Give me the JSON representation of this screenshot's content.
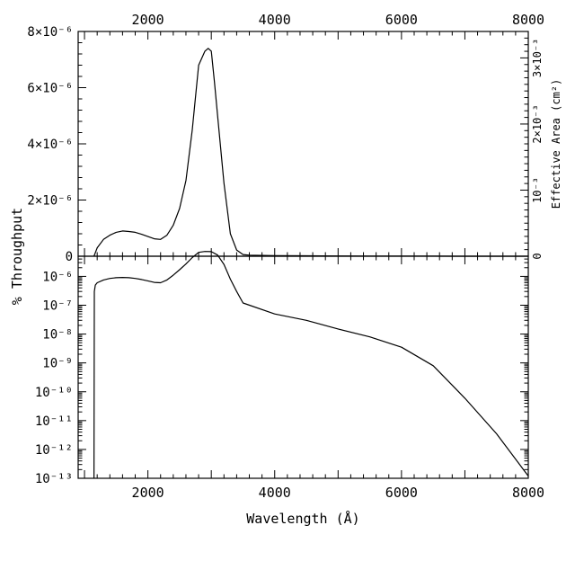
{
  "chart_data": [
    {
      "panel": "top",
      "type": "line",
      "xlabel": "Wavelength (Å)",
      "ylabel": "% Throughput",
      "y2label": "Effective Area (cm²)",
      "xlim": [
        900,
        8000
      ],
      "ylim": [
        0,
        8e-06
      ],
      "x_ticks": [
        2000,
        4000,
        6000,
        8000
      ],
      "y_ticks": [
        {
          "value": 0,
          "label": "0"
        },
        {
          "value": 2e-06,
          "label": "2×10⁻⁶"
        },
        {
          "value": 4e-06,
          "label": "4×10⁻⁶"
        },
        {
          "value": 6e-06,
          "label": "6×10⁻⁶"
        },
        {
          "value": 8e-06,
          "label": "8×10⁻⁶"
        }
      ],
      "y2_ticks": [
        {
          "value": 0,
          "label": "0"
        },
        {
          "value": 0.001,
          "label": "10⁻³"
        },
        {
          "value": 0.002,
          "label": "2×10⁻³"
        },
        {
          "value": 0.003,
          "label": "3×10⁻³"
        }
      ],
      "y2lim": [
        0,
        0.0034
      ],
      "series": [
        {
          "x": [
            1150,
            1200,
            1300,
            1400,
            1500,
            1600,
            1700,
            1800,
            1900,
            2000,
            2100,
            2200,
            2300,
            2400,
            2500,
            2600,
            2700,
            2800,
            2900,
            2950,
            3000,
            3050,
            3100,
            3200,
            3300,
            3400,
            3500,
            3600,
            3800,
            4000,
            4500,
            5000,
            5500,
            6000,
            6500,
            7000,
            7500,
            8000
          ],
          "values": [
            0.0,
            3e-07,
            6e-07,
            7.5e-07,
            8.5e-07,
            9e-07,
            8.8e-07,
            8.5e-07,
            7.8e-07,
            7e-07,
            6.2e-07,
            6e-07,
            7.5e-07,
            1.1e-06,
            1.7e-06,
            2.7e-06,
            4.5e-06,
            6.8e-06,
            7.3e-06,
            7.4e-06,
            7.3e-06,
            6.2e-06,
            5e-06,
            2.6e-06,
            8e-07,
            2.2e-07,
            6e-08,
            4e-08,
            3e-08,
            2e-08,
            1.5e-08,
            1e-08,
            8e-09,
            5e-09,
            3e-09,
            1e-09,
            5e-10,
            0.0
          ]
        }
      ]
    },
    {
      "panel": "bottom",
      "type": "line",
      "yscale": "log",
      "xlabel": "Wavelength (Å)",
      "xlim": [
        900,
        8000
      ],
      "ylim": [
        1e-13,
        5e-06
      ],
      "x_ticks": [
        2000,
        4000,
        6000,
        8000
      ],
      "y_ticks": [
        {
          "value": 1e-13,
          "label": "10⁻¹³"
        },
        {
          "value": 1e-12,
          "label": "10⁻¹²"
        },
        {
          "value": 1e-11,
          "label": "10⁻¹¹"
        },
        {
          "value": 1e-10,
          "label": "10⁻¹⁰"
        },
        {
          "value": 1e-09,
          "label": "10⁻⁹"
        },
        {
          "value": 1e-08,
          "label": "10⁻⁸"
        },
        {
          "value": 1e-07,
          "label": "10⁻⁷"
        },
        {
          "value": 1e-06,
          "label": "10⁻⁶"
        }
      ],
      "series": [
        {
          "x": [
            1150,
            1155,
            1170,
            1200,
            1300,
            1400,
            1500,
            1600,
            1700,
            1800,
            1900,
            2000,
            2100,
            2200,
            2300,
            2400,
            2500,
            2600,
            2700,
            2800,
            2900,
            3000,
            3100,
            3200,
            3300,
            3400,
            3500,
            4000,
            4500,
            5000,
            5500,
            6000,
            6500,
            7000,
            7500,
            8000
          ],
          "values": [
            1e-13,
            3e-07,
            5e-07,
            6e-07,
            7.5e-07,
            8.5e-07,
            9e-07,
            9.2e-07,
            9e-07,
            8.5e-07,
            7.8e-07,
            7e-07,
            6.2e-07,
            6e-07,
            7.5e-07,
            1.1e-06,
            1.7e-06,
            2.7e-06,
            4.5e-06,
            6.8e-06,
            7.3e-06,
            7.2e-06,
            5.5e-06,
            2.6e-06,
            8e-07,
            3e-07,
            1.2e-07,
            5e-08,
            3e-08,
            1.5e-08,
            8e-09,
            3.5e-09,
            8e-10,
            6e-11,
            3.5e-12,
            1.2e-13
          ]
        }
      ]
    }
  ]
}
